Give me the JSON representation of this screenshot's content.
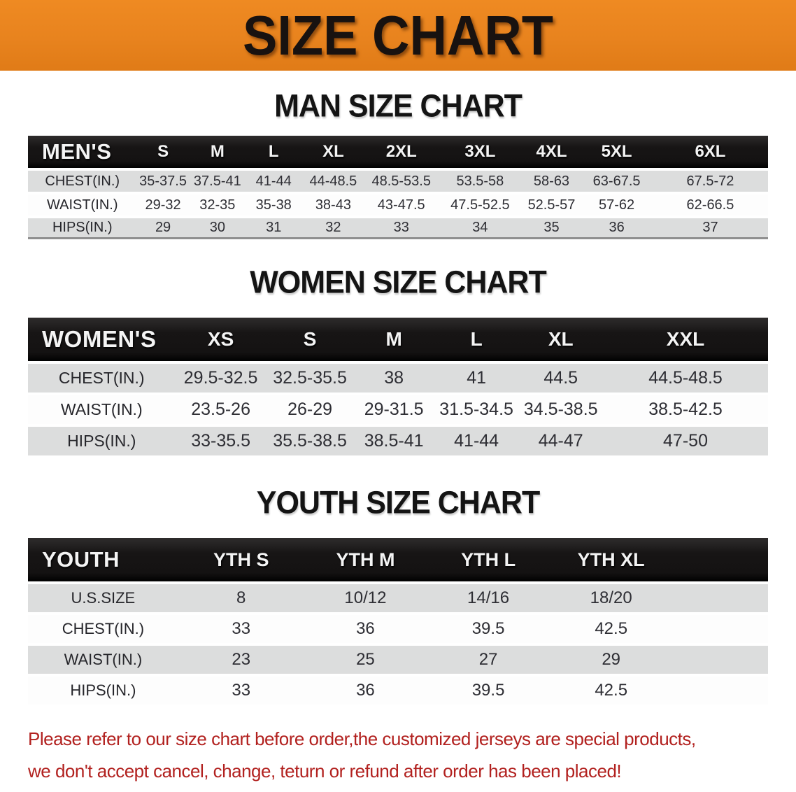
{
  "banner": {
    "title": "SIZE CHART",
    "bg_color": "#E8831E",
    "text_color": "#181210"
  },
  "sections": {
    "men": {
      "heading": "MAN SIZE CHART"
    },
    "women": {
      "heading": "WOMEN SIZE CHART"
    },
    "youth": {
      "heading": "YOUTH SIZE CHART"
    }
  },
  "tables": {
    "men": {
      "corner_label": "MEN'S",
      "columns": [
        "S",
        "M",
        "L",
        "XL",
        "2XL",
        "3XL",
        "4XL",
        "5XL",
        "6XL"
      ],
      "rows": [
        {
          "label": "CHEST(IN.)",
          "values": [
            "35-37.5",
            "37.5-41",
            "41-44",
            "44-48.5",
            "48.5-53.5",
            "53.5-58",
            "58-63",
            "63-67.5",
            "67.5-72"
          ]
        },
        {
          "label": "WAIST(IN.)",
          "values": [
            "29-32",
            "32-35",
            "35-38",
            "38-43",
            "43-47.5",
            "47.5-52.5",
            "52.5-57",
            "57-62",
            "62-66.5"
          ]
        },
        {
          "label": "HIPS(IN.)",
          "values": [
            "29",
            "30",
            "31",
            "32",
            "33",
            "34",
            "35",
            "36",
            "37"
          ]
        }
      ]
    },
    "women": {
      "corner_label": "WOMEN'S",
      "columns": [
        "XS",
        "S",
        "M",
        "L",
        "XL",
        "XXL"
      ],
      "rows": [
        {
          "label": "CHEST(IN.)",
          "values": [
            "29.5-32.5",
            "32.5-35.5",
            "38",
            "41",
            "44.5",
            "44.5-48.5"
          ]
        },
        {
          "label": "WAIST(IN.)",
          "values": [
            "23.5-26",
            "26-29",
            "29-31.5",
            "31.5-34.5",
            "34.5-38.5",
            "38.5-42.5"
          ]
        },
        {
          "label": "HIPS(IN.)",
          "values": [
            "33-35.5",
            "35.5-38.5",
            "38.5-41",
            "41-44",
            "44-47",
            "47-50"
          ]
        }
      ]
    },
    "youth": {
      "corner_label": "YOUTH",
      "columns": [
        "YTH S",
        "YTH M",
        "YTH L",
        "YTH XL"
      ],
      "rows": [
        {
          "label": "U.S.SIZE",
          "values": [
            "8",
            "10/12",
            "14/16",
            "18/20"
          ]
        },
        {
          "label": "CHEST(IN.)",
          "values": [
            "33",
            "36",
            "39.5",
            "42.5"
          ]
        },
        {
          "label": "WAIST(IN.)",
          "values": [
            "23",
            "25",
            "27",
            "29"
          ]
        },
        {
          "label": "HIPS(IN.)",
          "values": [
            "33",
            "36",
            "39.5",
            "42.5"
          ]
        }
      ]
    }
  },
  "disclaimer": {
    "line1": "Please refer to our size chart before order,the customized jerseys are special products,",
    "line2": "we don't accept cancel, change, teturn or refund after order has been placed!",
    "color": "#B2211F"
  },
  "colors": {
    "banner_orange": "#E8831E",
    "header_black": "#171515",
    "row_gray": "#DCDDDD",
    "row_white": "#FDFDFD",
    "disclaimer_red": "#B2211F"
  }
}
